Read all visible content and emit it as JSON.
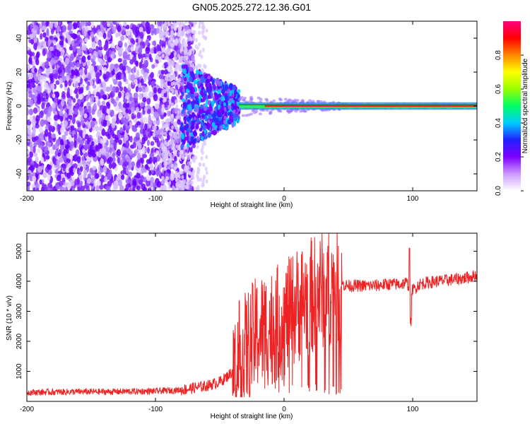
{
  "page_title": "GN05.2025.272.12.36.G01",
  "chart_data": [
    {
      "type": "heatmap",
      "title": "GN05.2025.272.12.36.G01",
      "xlabel": "Height of straight line (km)",
      "ylabel": "Frequency (Hz)",
      "xlim": [
        -200,
        150
      ],
      "ylim": [
        -50,
        50
      ],
      "x_ticks": [
        -200,
        -100,
        0,
        100
      ],
      "y_ticks": [
        -40,
        -20,
        0,
        20,
        40
      ],
      "colorbar": {
        "label": "Normalized spectral amplitude",
        "range": [
          0,
          1
        ],
        "ticks": [
          "0.0",
          "0.2",
          "0.4",
          "0.6",
          "0.8"
        ],
        "colors": [
          "#ffffff",
          "#cc99ff",
          "#7f00ff",
          "#2020ff",
          "#00ccff",
          "#00ff66",
          "#99ff00",
          "#ffff00",
          "#ff8800",
          "#ff0000",
          "#ff0080"
        ]
      },
      "regions": [
        {
          "x_range": [
            -200,
            -80
          ],
          "description": "diffuse noise",
          "amplitude": 0.15
        },
        {
          "x_range": [
            -80,
            -35
          ],
          "description": "transition",
          "amplitude": 0.3
        },
        {
          "x_range": [
            -35,
            150
          ],
          "description": "signal line near 0 Hz",
          "amplitude": 0.9
        }
      ]
    },
    {
      "type": "line",
      "xlabel": "Height of straight line (km)",
      "ylabel": "SNR (10 * v/v)",
      "xlim": [
        -200,
        150
      ],
      "ylim": [
        0,
        5600
      ],
      "x_ticks": [
        -200,
        -100,
        0,
        100
      ],
      "y_ticks": [
        1000,
        2000,
        3000,
        4000,
        5000
      ],
      "color": "#ee2222",
      "series": [
        {
          "name": "SNR",
          "x": [
            -200,
            -180,
            -160,
            -140,
            -120,
            -100,
            -80,
            -70,
            -60,
            -50,
            -45,
            -40,
            -35,
            -30,
            -25,
            -20,
            -15,
            -10,
            -5,
            0,
            5,
            10,
            15,
            20,
            25,
            30,
            35,
            40,
            45,
            50,
            60,
            70,
            80,
            90,
            95,
            100,
            105,
            110,
            120,
            130,
            140,
            150
          ],
          "y": [
            300,
            310,
            320,
            320,
            330,
            340,
            380,
            450,
            520,
            650,
            800,
            1000,
            1400,
            1700,
            2000,
            2300,
            2400,
            2500,
            2600,
            2700,
            2900,
            3200,
            3400,
            3500,
            3600,
            3700,
            3800,
            3850,
            3900,
            3850,
            3850,
            3850,
            3900,
            3900,
            3950,
            3700,
            3900,
            3950,
            4000,
            4050,
            4100,
            4200
          ]
        }
      ]
    }
  ]
}
